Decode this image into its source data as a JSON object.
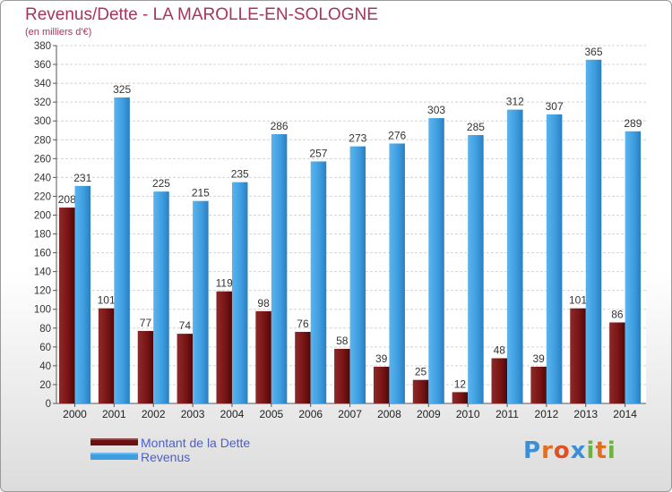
{
  "header": {
    "title": "Revenus/Dette - LA MAROLLE-EN-SOLOGNE",
    "subtitle": "(en milliers d'€)"
  },
  "chart_data": {
    "type": "bar",
    "categories": [
      "2000",
      "2001",
      "2002",
      "2003",
      "2004",
      "2005",
      "2006",
      "2007",
      "2008",
      "2009",
      "2010",
      "2011",
      "2012",
      "2013",
      "2014"
    ],
    "series": [
      {
        "name": "Montant de la Dette",
        "color": "#7a1515",
        "values": [
          208,
          101,
          77,
          74,
          119,
          98,
          76,
          58,
          39,
          25,
          12,
          48,
          39,
          101,
          86
        ]
      },
      {
        "name": "Revenus",
        "color": "#3f9ee0",
        "values": [
          231,
          325,
          225,
          215,
          235,
          286,
          257,
          273,
          276,
          303,
          285,
          312,
          307,
          365,
          289
        ]
      }
    ],
    "ylim": [
      0,
      380
    ],
    "yticks": [
      0,
      20,
      40,
      60,
      80,
      100,
      120,
      140,
      160,
      180,
      200,
      220,
      240,
      260,
      280,
      300,
      320,
      340,
      360,
      380
    ],
    "grid": true,
    "legend_position": "bottom-left"
  },
  "legend": {
    "items": [
      {
        "label": "Montant de la Dette",
        "color": "#6b1010"
      },
      {
        "label": "Revenus",
        "color": "#3f9ee0"
      }
    ]
  },
  "logo": {
    "letters": [
      "P",
      "r",
      "o",
      "x",
      "i",
      "t",
      "i"
    ],
    "colors": [
      "#3a8fd6",
      "#e07020",
      "#e05020",
      "#3a8fd6",
      "#6cb33f",
      "#e07020",
      "#6cb33f"
    ]
  }
}
